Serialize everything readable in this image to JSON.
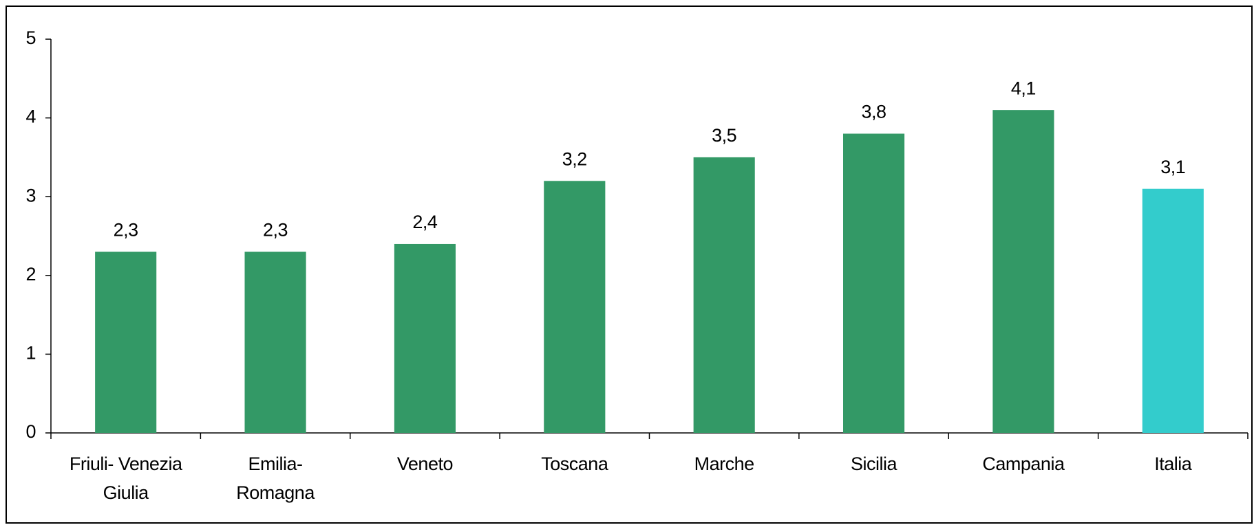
{
  "chart_data": {
    "type": "bar",
    "categories": [
      "Friuli-Venezia Giulia",
      "Emilia-Romagna",
      "Veneto",
      "Toscana",
      "Marche",
      "Sicilia",
      "Campania",
      "Italia"
    ],
    "values": [
      2.3,
      2.3,
      2.4,
      3.2,
      3.5,
      3.8,
      4.1,
      3.1
    ],
    "value_labels": [
      "2,3",
      "2,3",
      "2,4",
      "3,2",
      "3,5",
      "3,8",
      "4,1",
      "3,1"
    ],
    "colors": [
      "#339966",
      "#339966",
      "#339966",
      "#339966",
      "#339966",
      "#339966",
      "#339966",
      "#33cccc"
    ],
    "ylim": [
      0,
      5
    ],
    "yticks": [
      0,
      1,
      2,
      3,
      4,
      5
    ],
    "grid": false
  }
}
